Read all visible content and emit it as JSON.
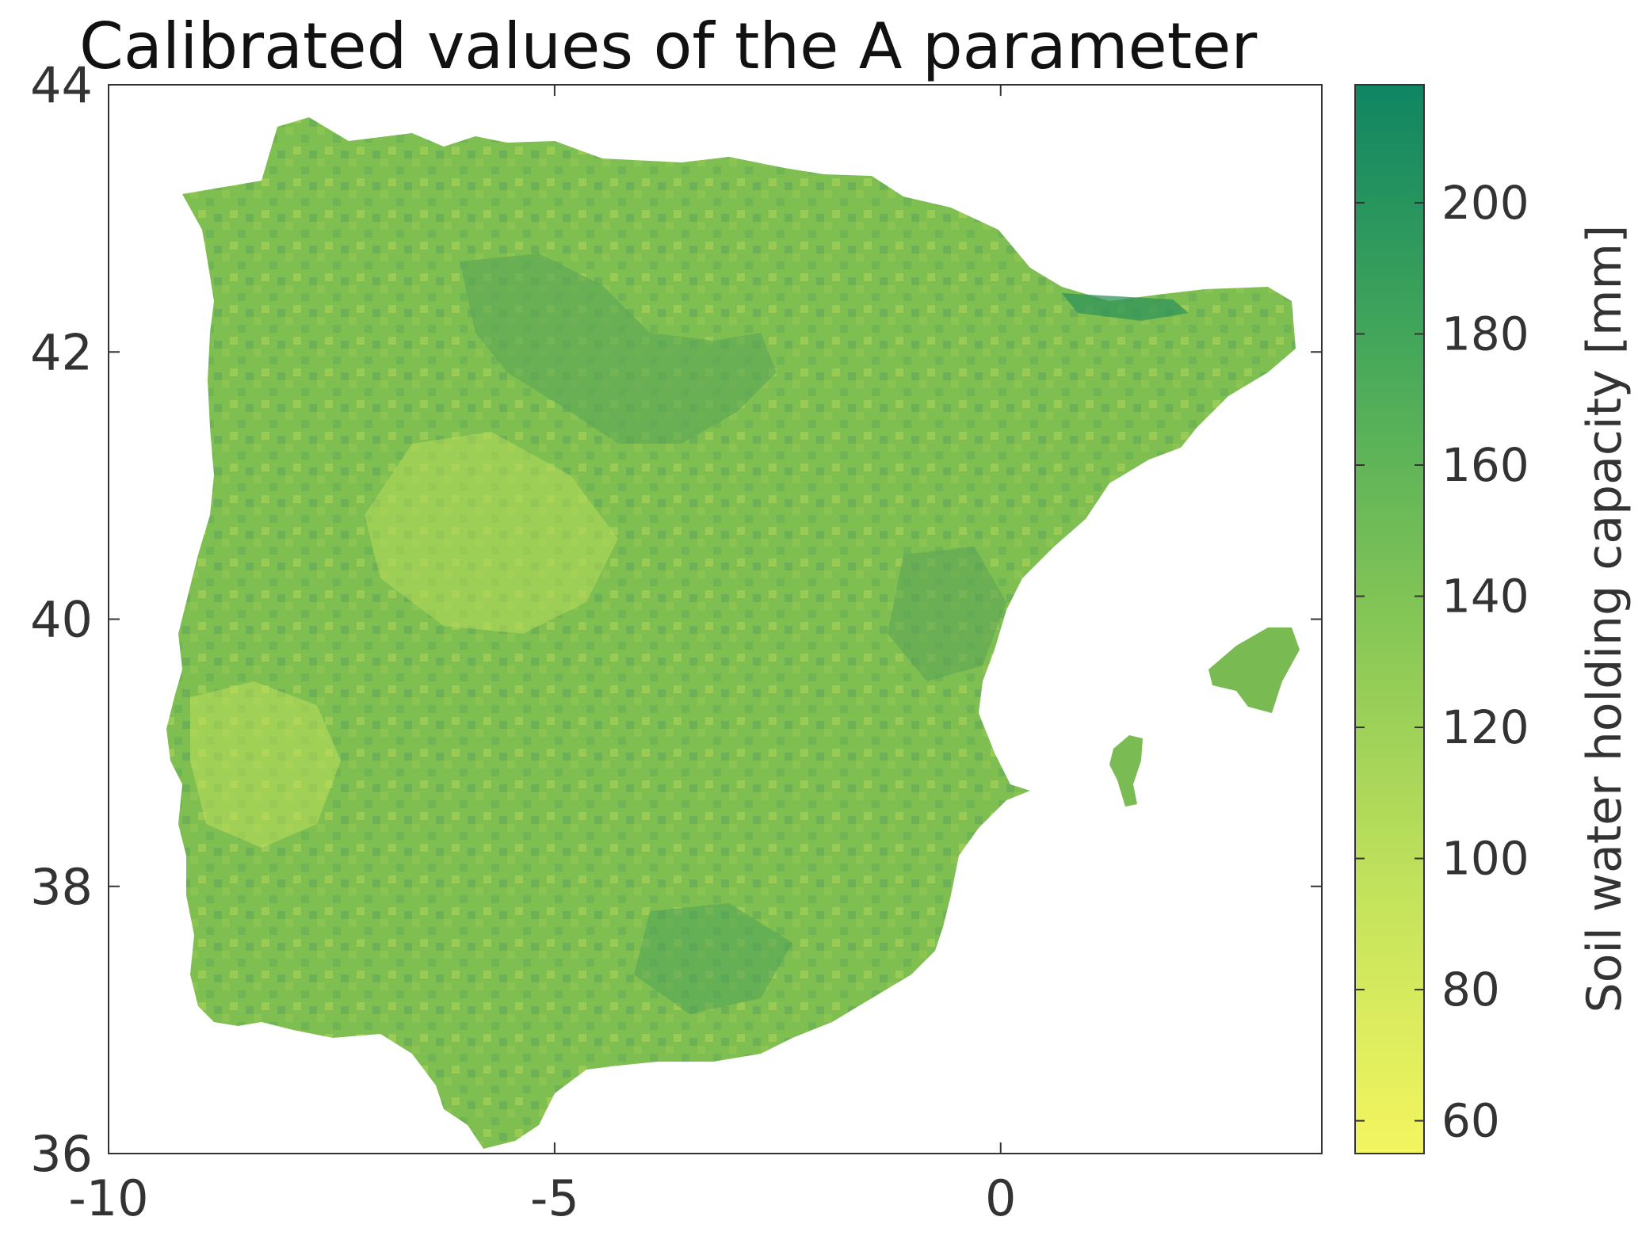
{
  "title": "Calibrated values of the A parameter",
  "map": {
    "x_ticks": [
      "-10",
      "-5",
      "0"
    ],
    "x_tick_values": [
      -10,
      -5,
      0
    ],
    "y_ticks": [
      "44",
      "42",
      "40",
      "38",
      "36"
    ],
    "y_tick_values": [
      44,
      42,
      40,
      38,
      36
    ],
    "xlim": [
      -10,
      3.6
    ],
    "ylim": [
      36,
      44
    ],
    "regions": [
      "Iberian Peninsula",
      "Mallorca",
      "Ibiza"
    ]
  },
  "colorbar": {
    "label": "Soil water holding capacity [mm]",
    "ticks": [
      "200",
      "180",
      "160",
      "140",
      "120",
      "100",
      "80",
      "60"
    ],
    "tick_values": [
      200,
      180,
      160,
      140,
      120,
      100,
      80,
      60
    ],
    "range": [
      55,
      218
    ],
    "colors": {
      "low": "#f3f55f",
      "mid": "#7fbf4f",
      "high": "#0f8562"
    }
  }
}
